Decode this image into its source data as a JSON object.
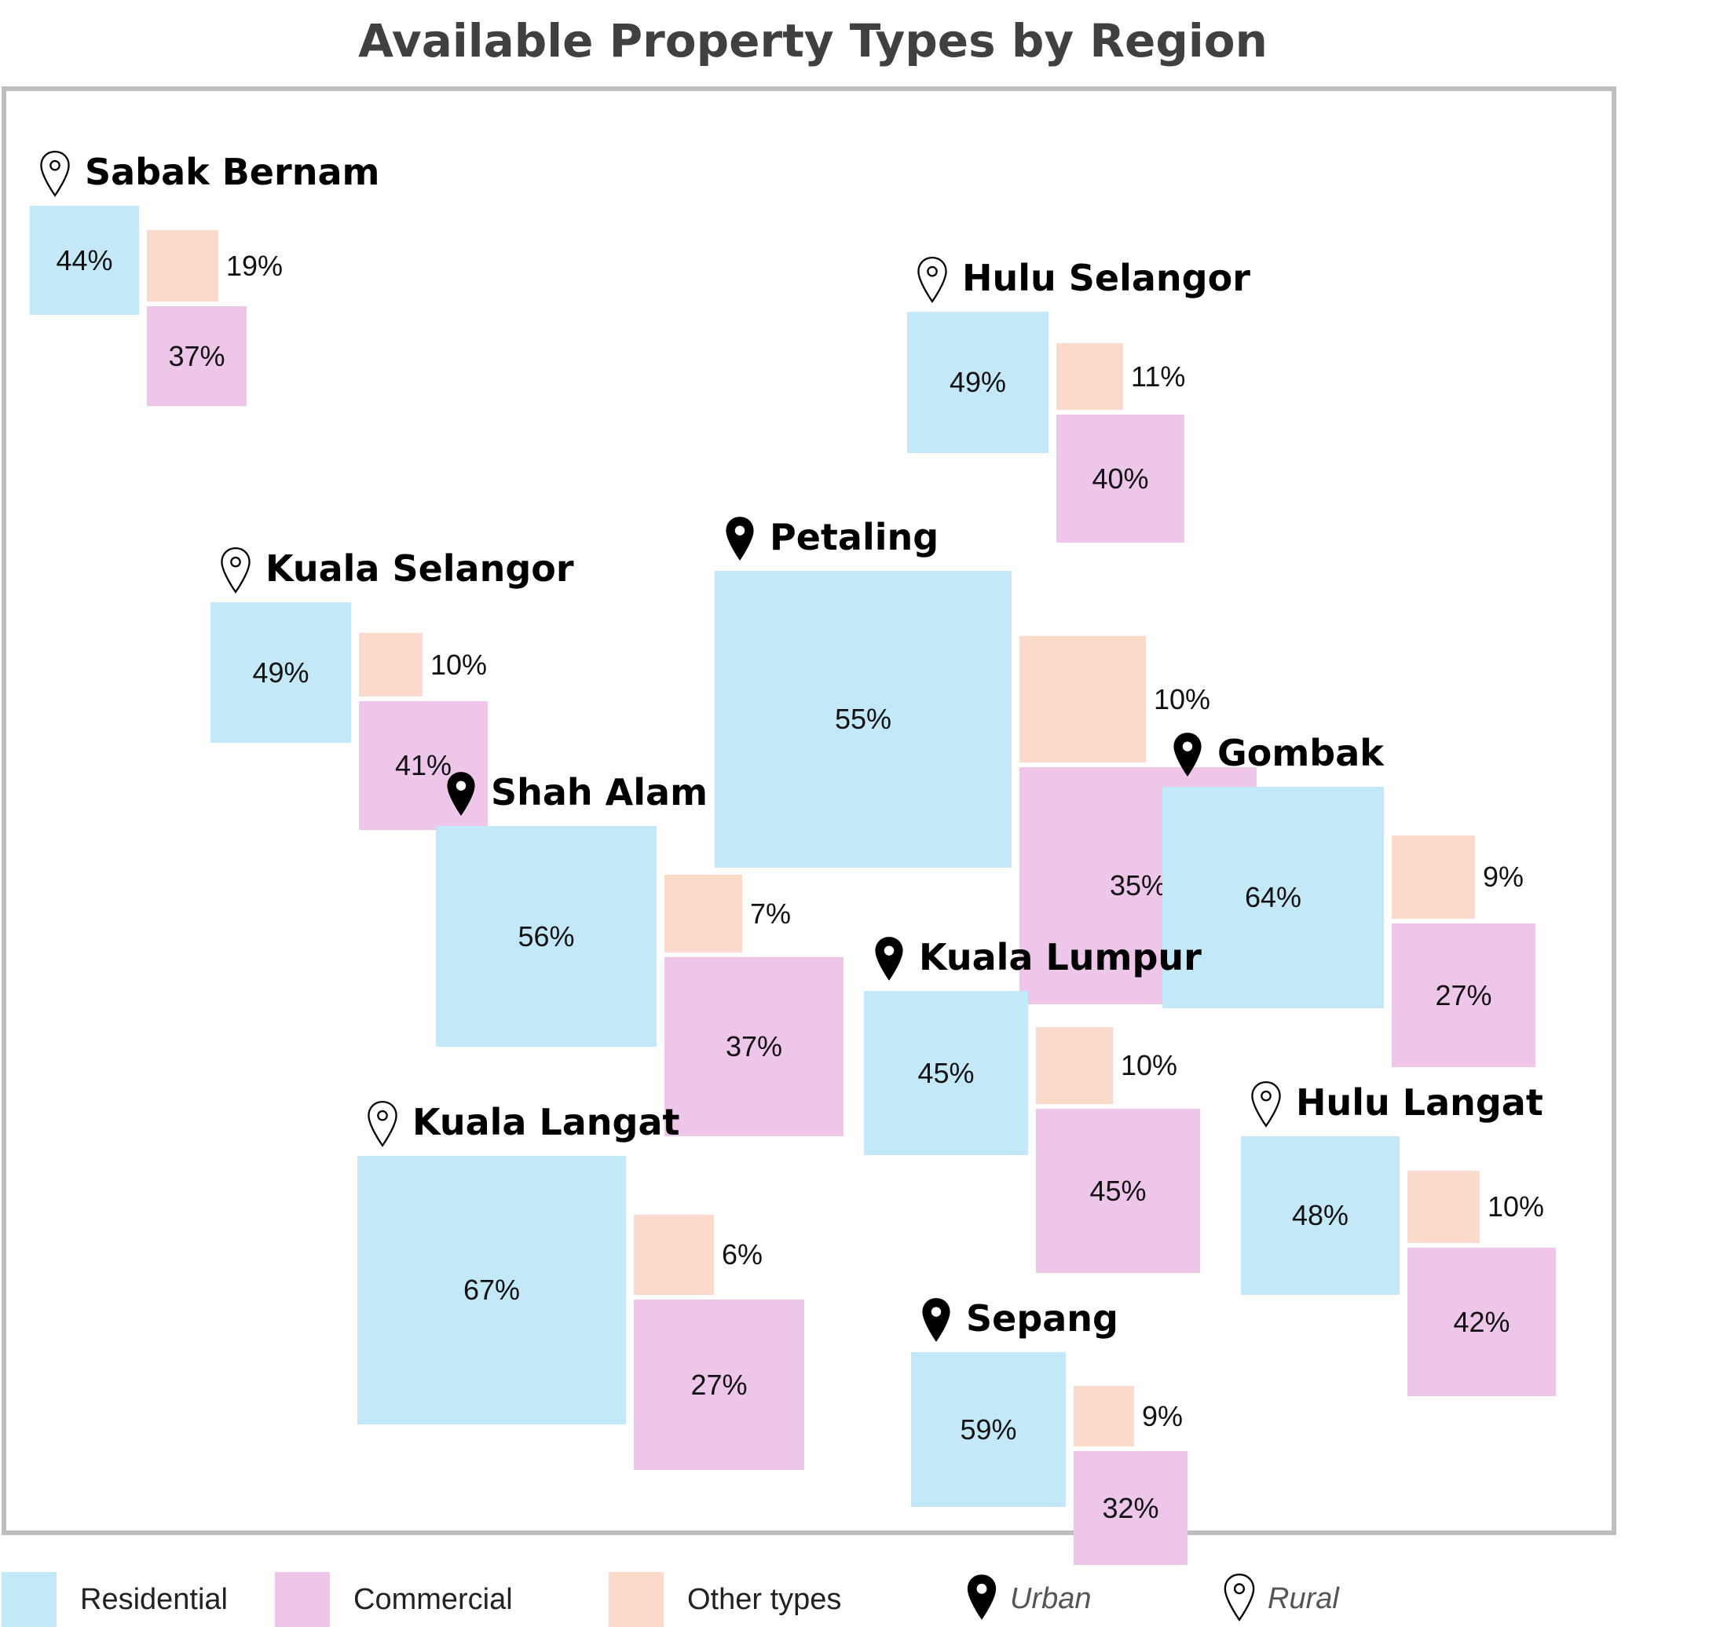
{
  "chart_data": {
    "type": "treemap-map",
    "title": "Available Property Types by Region",
    "categories": [
      "Residential",
      "Commercial",
      "Other types"
    ],
    "colors": {
      "Residential": "#c3e8f8",
      "Commercial": "#eec6ea",
      "Other types": "#f9dacb",
      "frame": "#bfbfbf"
    },
    "legend": {
      "placement": "bottom",
      "items": [
        "Residential",
        "Commercial",
        "Other types"
      ],
      "pins": [
        {
          "key": "urban",
          "label": "Urban",
          "icon": "filled-map-pin-icon"
        },
        {
          "key": "rural",
          "label": "Rural",
          "icon": "outline-map-pin-icon"
        }
      ]
    },
    "regions": [
      {
        "name": "Sabak Bernam",
        "type": "rural",
        "residential": 44,
        "commercial": 37,
        "other": 19
      },
      {
        "name": "Hulu Selangor",
        "type": "rural",
        "residential": 49,
        "commercial": 40,
        "other": 11
      },
      {
        "name": "Kuala Selangor",
        "type": "rural",
        "residential": 49,
        "commercial": 41,
        "other": 10
      },
      {
        "name": "Petaling",
        "type": "urban",
        "residential": 55,
        "commercial": 35,
        "other": 10
      },
      {
        "name": "Gombak",
        "type": "urban",
        "residential": 64,
        "commercial": 27,
        "other": 9
      },
      {
        "name": "Shah Alam",
        "type": "urban",
        "residential": 56,
        "commercial": 37,
        "other": 7
      },
      {
        "name": "Kuala Lumpur",
        "type": "urban",
        "residential": 45,
        "commercial": 45,
        "other": 10
      },
      {
        "name": "Hulu Langat",
        "type": "rural",
        "residential": 48,
        "commercial": 42,
        "other": 10
      },
      {
        "name": "Kuala Langat",
        "type": "rural",
        "residential": 67,
        "commercial": 27,
        "other": 6
      },
      {
        "name": "Sepang",
        "type": "urban",
        "residential": 59,
        "commercial": 32,
        "other": 9
      }
    ]
  }
}
